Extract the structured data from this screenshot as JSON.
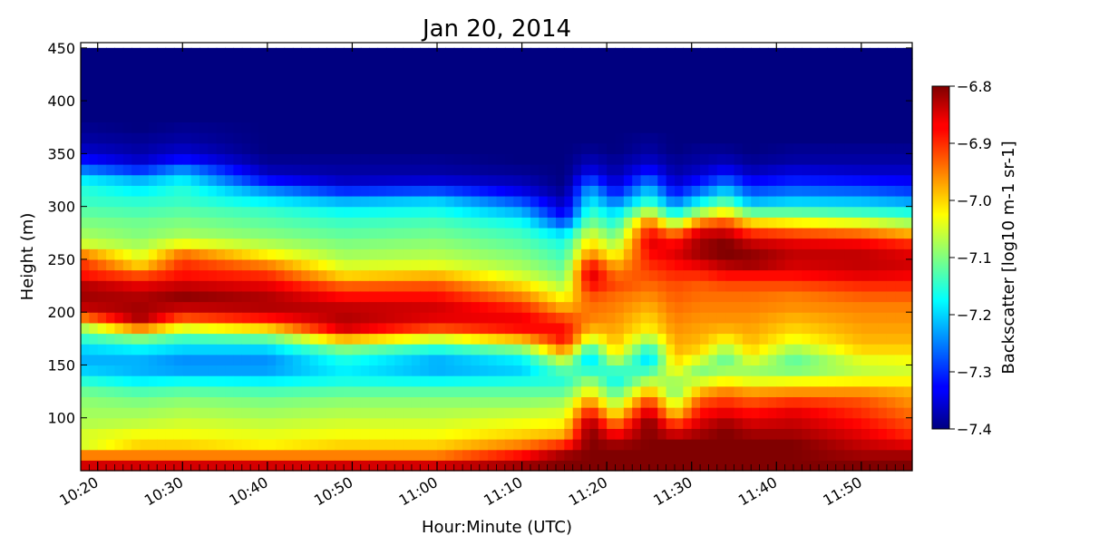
{
  "chart_data": {
    "type": "heatmap",
    "title": "Jan 20, 2014",
    "xlabel": "Hour:Minute (UTC)",
    "ylabel": "Height (m)",
    "x_start": "10:18",
    "x_end": "11:56",
    "xlim": [
      "10:18",
      "11:56"
    ],
    "ylim": [
      50,
      455
    ],
    "x_ticks": [
      "10:20",
      "10:30",
      "10:40",
      "10:50",
      "11:00",
      "11:10",
      "11:20",
      "11:30",
      "11:40",
      "11:50"
    ],
    "y_ticks": [
      100,
      150,
      200,
      250,
      300,
      350,
      400,
      450
    ],
    "colorbar": {
      "label": "Backscatter [log10 m-1 sr-1]",
      "range": [
        -7.4,
        -6.8
      ],
      "ticks": [
        -6.8,
        -6.9,
        -7.0,
        -7.1,
        -7.2,
        -7.3,
        -7.4
      ],
      "tick_labels": [
        "−6.8",
        "−6.9",
        "−7.0",
        "−7.1",
        "−7.2",
        "−7.3",
        "−7.4"
      ],
      "colormap": "jet"
    },
    "heights_m": [
      55,
      65,
      75,
      85,
      95,
      105,
      115,
      125,
      135,
      145,
      155,
      165,
      175,
      185,
      195,
      205,
      215,
      225,
      235,
      245,
      255,
      265,
      275,
      285,
      295,
      305,
      315,
      325,
      335,
      345,
      355,
      365,
      375,
      385,
      395,
      405,
      415,
      425,
      435,
      445
    ],
    "profiles": [
      {
        "time": "10:18",
        "values": [
          -6.85,
          -6.95,
          -7.05,
          -7.05,
          -7.07,
          -7.08,
          -7.09,
          -7.11,
          -7.15,
          -7.2,
          -7.22,
          -7.2,
          -7.15,
          -7.08,
          -6.95,
          -6.84,
          -6.82,
          -6.83,
          -6.88,
          -6.9,
          -6.95,
          -7.05,
          -7.08,
          -7.1,
          -7.12,
          -7.14,
          -7.15,
          -7.18,
          -7.25,
          -7.32,
          -7.36,
          -7.38,
          -7.39,
          -7.4,
          -7.4,
          -7.4,
          -7.4,
          -7.4,
          -7.4,
          -7.4
        ]
      },
      {
        "time": "10:25",
        "values": [
          -6.85,
          -6.95,
          -7.0,
          -7.03,
          -7.06,
          -7.08,
          -7.1,
          -7.13,
          -7.18,
          -7.22,
          -7.22,
          -7.18,
          -7.1,
          -6.95,
          -6.82,
          -6.82,
          -6.83,
          -6.86,
          -6.92,
          -7.0,
          -7.05,
          -7.08,
          -7.1,
          -7.11,
          -7.13,
          -7.15,
          -7.18,
          -7.22,
          -7.3,
          -7.36,
          -7.38,
          -7.39,
          -7.4,
          -7.4,
          -7.4,
          -7.4,
          -7.4,
          -7.4,
          -7.4,
          -7.4
        ]
      },
      {
        "time": "10:30",
        "values": [
          -6.85,
          -6.95,
          -7.0,
          -7.03,
          -7.05,
          -7.07,
          -7.09,
          -7.12,
          -7.17,
          -7.23,
          -7.24,
          -7.2,
          -7.14,
          -7.04,
          -6.92,
          -6.84,
          -6.81,
          -6.84,
          -6.88,
          -6.9,
          -6.94,
          -7.03,
          -7.08,
          -7.1,
          -7.12,
          -7.14,
          -7.15,
          -7.18,
          -7.24,
          -7.32,
          -7.36,
          -7.38,
          -7.39,
          -7.4,
          -7.4,
          -7.4,
          -7.4,
          -7.4,
          -7.4,
          -7.4
        ]
      },
      {
        "time": "10:40",
        "values": [
          -6.85,
          -6.95,
          -7.02,
          -7.04,
          -7.06,
          -7.08,
          -7.1,
          -7.13,
          -7.18,
          -7.23,
          -7.24,
          -7.2,
          -7.12,
          -7.0,
          -6.88,
          -6.83,
          -6.83,
          -6.86,
          -6.9,
          -6.95,
          -7.02,
          -7.07,
          -7.1,
          -7.12,
          -7.14,
          -7.18,
          -7.24,
          -7.32,
          -7.37,
          -7.39,
          -7.4,
          -7.4,
          -7.4,
          -7.4,
          -7.4,
          -7.4,
          -7.4,
          -7.4,
          -7.4,
          -7.4
        ]
      },
      {
        "time": "10:49",
        "values": [
          -6.85,
          -6.95,
          -7.0,
          -7.03,
          -7.05,
          -7.07,
          -7.09,
          -7.12,
          -7.16,
          -7.18,
          -7.16,
          -7.1,
          -6.98,
          -6.85,
          -6.83,
          -6.84,
          -6.88,
          -6.93,
          -7.0,
          -7.05,
          -7.08,
          -7.1,
          -7.12,
          -7.14,
          -7.17,
          -7.22,
          -7.3,
          -7.36,
          -7.38,
          -7.39,
          -7.4,
          -7.4,
          -7.4,
          -7.4,
          -7.4,
          -7.4,
          -7.4,
          -7.4,
          -7.4,
          -7.4
        ]
      },
      {
        "time": "11:00",
        "values": [
          -6.85,
          -6.95,
          -7.0,
          -7.03,
          -7.05,
          -7.07,
          -7.09,
          -7.12,
          -7.17,
          -7.22,
          -7.22,
          -7.16,
          -7.05,
          -6.92,
          -6.86,
          -6.85,
          -6.88,
          -6.92,
          -6.98,
          -7.04,
          -7.07,
          -7.09,
          -7.11,
          -7.13,
          -7.16,
          -7.2,
          -7.28,
          -7.35,
          -7.38,
          -7.39,
          -7.4,
          -7.4,
          -7.4,
          -7.4,
          -7.4,
          -7.4,
          -7.4,
          -7.4,
          -7.4,
          -7.4
        ]
      },
      {
        "time": "11:10",
        "values": [
          -6.82,
          -6.88,
          -6.95,
          -7.0,
          -7.03,
          -7.06,
          -7.09,
          -7.12,
          -7.16,
          -7.2,
          -7.18,
          -7.1,
          -6.98,
          -6.88,
          -6.87,
          -6.9,
          -6.95,
          -7.0,
          -7.05,
          -7.08,
          -7.1,
          -7.12,
          -7.14,
          -7.17,
          -7.22,
          -7.28,
          -7.34,
          -7.37,
          -7.39,
          -7.4,
          -7.4,
          -7.4,
          -7.4,
          -7.4,
          -7.4,
          -7.4,
          -7.4,
          -7.4,
          -7.4,
          -7.4
        ]
      },
      {
        "time": "11:15",
        "values": [
          -6.8,
          -6.82,
          -6.9,
          -6.98,
          -7.02,
          -7.05,
          -7.08,
          -7.12,
          -7.15,
          -7.12,
          -7.05,
          -6.95,
          -6.88,
          -6.88,
          -6.92,
          -6.98,
          -7.03,
          -7.07,
          -7.1,
          -7.12,
          -7.14,
          -7.16,
          -7.2,
          -7.28,
          -7.34,
          -7.37,
          -7.39,
          -7.4,
          -7.4,
          -7.4,
          -7.4,
          -7.4,
          -7.4,
          -7.4,
          -7.4,
          -7.4,
          -7.4,
          -7.4,
          -7.4,
          -7.4
        ]
      },
      {
        "time": "11:18",
        "values": [
          -6.8,
          -6.8,
          -6.8,
          -6.8,
          -6.82,
          -6.88,
          -6.95,
          -7.02,
          -7.08,
          -7.15,
          -7.2,
          -7.15,
          -7.05,
          -6.98,
          -6.95,
          -6.94,
          -6.92,
          -6.88,
          -6.85,
          -6.88,
          -6.95,
          -7.0,
          -7.05,
          -7.1,
          -7.14,
          -7.18,
          -7.22,
          -7.28,
          -7.34,
          -7.37,
          -7.39,
          -7.4,
          -7.4,
          -7.4,
          -7.4,
          -7.4,
          -7.4,
          -7.4,
          -7.4,
          -7.4
        ]
      },
      {
        "time": "11:21",
        "values": [
          -6.8,
          -6.8,
          -6.82,
          -6.88,
          -6.95,
          -7.02,
          -7.08,
          -7.13,
          -7.17,
          -7.14,
          -7.06,
          -7.0,
          -6.98,
          -6.97,
          -6.96,
          -6.95,
          -6.94,
          -6.92,
          -6.94,
          -6.98,
          -7.03,
          -7.08,
          -7.12,
          -7.16,
          -7.2,
          -7.26,
          -7.32,
          -7.36,
          -7.38,
          -7.39,
          -7.4,
          -7.4,
          -7.4,
          -7.4,
          -7.4,
          -7.4,
          -7.4,
          -7.4,
          -7.4,
          -7.4
        ]
      },
      {
        "time": "11:25",
        "values": [
          -6.8,
          -6.8,
          -6.8,
          -6.8,
          -6.8,
          -6.84,
          -6.9,
          -6.98,
          -7.06,
          -7.14,
          -7.2,
          -7.16,
          -7.08,
          -7.02,
          -7.0,
          -6.98,
          -6.96,
          -6.94,
          -6.92,
          -6.9,
          -6.88,
          -6.86,
          -6.88,
          -6.94,
          -7.05,
          -7.14,
          -7.2,
          -7.26,
          -7.32,
          -7.36,
          -7.38,
          -7.39,
          -7.4,
          -7.4,
          -7.4,
          -7.4,
          -7.4,
          -7.4,
          -7.4,
          -7.4
        ]
      },
      {
        "time": "11:28",
        "values": [
          -6.8,
          -6.8,
          -6.8,
          -6.85,
          -6.92,
          -7.0,
          -7.06,
          -7.1,
          -7.08,
          -7.03,
          -7.0,
          -6.98,
          -6.97,
          -6.96,
          -6.95,
          -6.94,
          -6.93,
          -6.92,
          -6.9,
          -6.88,
          -6.86,
          -6.88,
          -6.95,
          -7.08,
          -7.18,
          -7.26,
          -7.32,
          -7.36,
          -7.38,
          -7.39,
          -7.4,
          -7.4,
          -7.4,
          -7.4,
          -7.4,
          -7.4,
          -7.4,
          -7.4,
          -7.4,
          -7.4
        ]
      },
      {
        "time": "11:31",
        "values": [
          -6.8,
          -6.8,
          -6.8,
          -6.82,
          -6.85,
          -6.88,
          -6.92,
          -6.98,
          -7.05,
          -7.1,
          -7.05,
          -7.0,
          -6.98,
          -6.97,
          -6.96,
          -6.95,
          -6.94,
          -6.93,
          -6.9,
          -6.86,
          -6.82,
          -6.82,
          -6.85,
          -6.95,
          -7.08,
          -7.18,
          -7.26,
          -7.32,
          -7.36,
          -7.38,
          -7.39,
          -7.4,
          -7.4,
          -7.4,
          -7.4,
          -7.4,
          -7.4,
          -7.4,
          -7.4,
          -7.4
        ]
      },
      {
        "time": "11:34",
        "values": [
          -6.8,
          -6.8,
          -6.8,
          -6.8,
          -6.82,
          -6.86,
          -6.9,
          -6.95,
          -7.02,
          -7.08,
          -7.12,
          -7.08,
          -7.02,
          -6.98,
          -6.96,
          -6.95,
          -6.94,
          -6.92,
          -6.88,
          -6.83,
          -6.8,
          -6.8,
          -6.84,
          -6.92,
          -7.02,
          -7.12,
          -7.2,
          -7.27,
          -7.33,
          -7.37,
          -7.39,
          -7.4,
          -7.4,
          -7.4,
          -7.4,
          -7.4,
          -7.4,
          -7.4,
          -7.4,
          -7.4
        ]
      },
      {
        "time": "11:37",
        "values": [
          -6.8,
          -6.8,
          -6.8,
          -6.82,
          -6.85,
          -6.88,
          -6.92,
          -6.97,
          -7.04,
          -7.08,
          -7.04,
          -7.0,
          -6.98,
          -6.97,
          -6.96,
          -6.95,
          -6.94,
          -6.92,
          -6.88,
          -6.82,
          -6.81,
          -6.84,
          -6.9,
          -7.0,
          -7.12,
          -7.22,
          -7.28,
          -7.33,
          -7.37,
          -7.39,
          -7.4,
          -7.4,
          -7.4,
          -7.4,
          -7.4,
          -7.4,
          -7.4,
          -7.4,
          -7.4,
          -7.4
        ]
      },
      {
        "time": "11:42",
        "values": [
          -6.8,
          -6.8,
          -6.8,
          -6.82,
          -6.84,
          -6.86,
          -6.9,
          -6.96,
          -7.03,
          -7.1,
          -7.12,
          -7.08,
          -7.03,
          -7.0,
          -6.98,
          -6.96,
          -6.95,
          -6.92,
          -6.88,
          -6.85,
          -6.84,
          -6.86,
          -6.92,
          -7.02,
          -7.12,
          -7.2,
          -7.26,
          -7.31,
          -7.35,
          -7.38,
          -7.39,
          -7.4,
          -7.4,
          -7.4,
          -7.4,
          -7.4,
          -7.4,
          -7.4,
          -7.4,
          -7.4
        ]
      },
      {
        "time": "11:50",
        "values": [
          -6.8,
          -6.82,
          -6.84,
          -6.86,
          -6.88,
          -6.9,
          -6.92,
          -6.96,
          -7.02,
          -7.06,
          -7.04,
          -7.0,
          -6.98,
          -6.97,
          -6.96,
          -6.95,
          -6.93,
          -6.9,
          -6.86,
          -6.84,
          -6.84,
          -6.87,
          -6.94,
          -7.04,
          -7.14,
          -7.21,
          -7.27,
          -7.32,
          -7.36,
          -7.38,
          -7.39,
          -7.4,
          -7.4,
          -7.4,
          -7.4,
          -7.4,
          -7.4,
          -7.4,
          -7.4,
          -7.4
        ]
      },
      {
        "time": "11:56",
        "values": [
          -6.8,
          -6.82,
          -6.86,
          -6.9,
          -6.92,
          -6.94,
          -6.96,
          -6.98,
          -7.02,
          -7.05,
          -7.03,
          -7.0,
          -6.98,
          -6.97,
          -6.96,
          -6.95,
          -6.93,
          -6.9,
          -6.87,
          -6.85,
          -6.86,
          -6.9,
          -6.98,
          -7.08,
          -7.16,
          -7.23,
          -7.29,
          -7.33,
          -7.36,
          -7.38,
          -7.39,
          -7.4,
          -7.4,
          -7.4,
          -7.4,
          -7.4,
          -7.4,
          -7.4,
          -7.4,
          -7.4
        ]
      }
    ]
  }
}
